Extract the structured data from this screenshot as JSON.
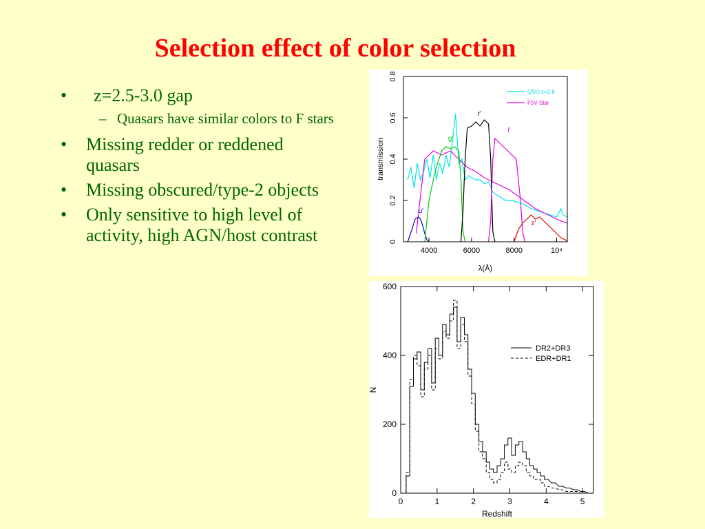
{
  "slide": {
    "title": "Selection effect of color selection",
    "bullets": [
      {
        "text": "z=2.5-3.0 gap",
        "sub": [
          "Quasars have similar colors to F stars"
        ]
      },
      {
        "text": "Missing redder or reddened quasars",
        "sub": []
      },
      {
        "text": "Missing obscured/type-2 objects",
        "sub": []
      },
      {
        "text": "Only sensitive to high level of activity, high AGN/host contrast",
        "sub": []
      }
    ]
  },
  "colors": {
    "title": "#ff0000",
    "text": "#006600",
    "background": "#ffffc8"
  },
  "chart_data": [
    {
      "type": "line",
      "title": "",
      "xlabel": "λ(Å)",
      "ylabel": "transmission",
      "xlim": [
        2800,
        10500
      ],
      "ylim": [
        0,
        0.8
      ],
      "xticks": [
        4000,
        6000,
        8000,
        10000
      ],
      "xtick_labels": [
        "4000",
        "6000",
        "8000",
        "10⁴"
      ],
      "yticks": [
        0,
        0.2,
        0.4,
        0.6,
        0.8
      ],
      "ytick_labels": [
        "0",
        "0.2",
        "0.4",
        "0.6",
        "0.8"
      ],
      "legend_position": "top-right",
      "legend": [
        "QSO z=2.8",
        "F5V Star"
      ],
      "annotations": [
        "u'",
        "g'",
        "r'",
        "i'",
        "z'"
      ],
      "series": [
        {
          "name": "QSO z=2.8",
          "color": "#00e5e5",
          "x": [
            3000,
            3150,
            3300,
            3450,
            3600,
            3750,
            3900,
            4050,
            4200,
            4350,
            4500,
            4650,
            4800,
            4950,
            5100,
            5250,
            5400,
            5550,
            5700,
            5850,
            6000,
            6200,
            6400,
            6600,
            6800,
            7000,
            7300,
            7600,
            7900,
            8200,
            8500,
            8800,
            9100,
            9400,
            9700,
            10000,
            10200,
            10300,
            10500
          ],
          "y": [
            0.3,
            0.36,
            0.26,
            0.38,
            0.3,
            0.34,
            0.4,
            0.31,
            0.42,
            0.3,
            0.38,
            0.33,
            0.42,
            0.36,
            0.48,
            0.62,
            0.38,
            0.4,
            0.3,
            0.32,
            0.31,
            0.3,
            0.3,
            0.28,
            0.29,
            0.24,
            0.22,
            0.2,
            0.2,
            0.19,
            0.18,
            0.16,
            0.15,
            0.14,
            0.13,
            0.12,
            0.16,
            0.13,
            0.12
          ]
        },
        {
          "name": "F5V Star",
          "color": "#e000e0",
          "x": [
            3400,
            3800,
            4200,
            4600,
            5000,
            5400,
            5800,
            6200,
            6600,
            7000,
            7400,
            7800,
            8200,
            8600,
            9000,
            9400,
            9800,
            10200,
            10500
          ],
          "y": [
            0.04,
            0.4,
            0.44,
            0.42,
            0.44,
            0.4,
            0.36,
            0.34,
            0.31,
            0.29,
            0.27,
            0.25,
            0.22,
            0.19,
            0.16,
            0.14,
            0.12,
            0.1,
            0.09
          ]
        },
        {
          "name": "u'",
          "color": "#0000cc",
          "x": [
            3000,
            3200,
            3350,
            3500,
            3600,
            3700,
            3800,
            3900,
            4000
          ],
          "y": [
            0.0,
            0.06,
            0.11,
            0.12,
            0.11,
            0.08,
            0.04,
            0.01,
            0.0
          ]
        },
        {
          "name": "g'",
          "color": "#00cc00",
          "x": [
            3800,
            4000,
            4200,
            4400,
            4600,
            4800,
            5000,
            5200,
            5400,
            5500,
            5600,
            5700
          ],
          "y": [
            0.0,
            0.2,
            0.3,
            0.38,
            0.44,
            0.46,
            0.45,
            0.46,
            0.44,
            0.3,
            0.05,
            0.0
          ]
        },
        {
          "name": "r'",
          "color": "#000000",
          "x": [
            5500,
            5600,
            5700,
            5800,
            6000,
            6200,
            6400,
            6600,
            6800,
            6900,
            7000,
            7100
          ],
          "y": [
            0.0,
            0.15,
            0.4,
            0.55,
            0.56,
            0.58,
            0.56,
            0.59,
            0.57,
            0.4,
            0.05,
            0.0
          ]
        },
        {
          "name": "i'",
          "color": "#e000e0",
          "x": [
            6800,
            6900,
            7000,
            7100,
            7300,
            7500,
            7700,
            7900,
            8100,
            8300,
            8400,
            8500
          ],
          "y": [
            0.0,
            0.1,
            0.4,
            0.5,
            0.48,
            0.46,
            0.44,
            0.42,
            0.4,
            0.2,
            0.05,
            0.0
          ]
        },
        {
          "name": "z'",
          "color": "#dd0000",
          "x": [
            8000,
            8200,
            8400,
            8600,
            8800,
            9000,
            9200,
            9400,
            9600,
            9800,
            10000,
            10200,
            10400,
            10500
          ],
          "y": [
            0.0,
            0.06,
            0.09,
            0.11,
            0.13,
            0.11,
            0.12,
            0.1,
            0.08,
            0.06,
            0.04,
            0.02,
            0.01,
            0.0
          ]
        }
      ]
    },
    {
      "type": "line",
      "title": "",
      "xlabel": "Redshift",
      "ylabel": "N",
      "xlim": [
        0,
        5.3
      ],
      "ylim": [
        0,
        600
      ],
      "xticks": [
        0,
        1,
        2,
        3,
        4,
        5
      ],
      "yticks": [
        0,
        200,
        400,
        600
      ],
      "legend_position": "top-right",
      "legend": [
        "DR2+DR3",
        "EDR+DR1"
      ],
      "series": [
        {
          "name": "DR2+DR3",
          "style": "solid",
          "color": "#000000",
          "x": [
            0.1,
            0.2,
            0.3,
            0.4,
            0.5,
            0.6,
            0.7,
            0.8,
            0.9,
            1.0,
            1.1,
            1.2,
            1.3,
            1.4,
            1.5,
            1.6,
            1.7,
            1.8,
            1.9,
            2.0,
            2.1,
            2.2,
            2.3,
            2.4,
            2.5,
            2.6,
            2.7,
            2.8,
            2.9,
            3.0,
            3.1,
            3.2,
            3.3,
            3.4,
            3.5,
            3.6,
            3.7,
            3.8,
            3.9,
            4.0,
            4.2,
            4.4,
            4.6,
            4.8,
            5.0,
            5.2
          ],
          "y": [
            0,
            50,
            310,
            390,
            410,
            300,
            380,
            420,
            320,
            450,
            400,
            490,
            460,
            520,
            540,
            440,
            510,
            460,
            360,
            290,
            200,
            150,
            120,
            90,
            70,
            60,
            80,
            100,
            140,
            160,
            110,
            140,
            150,
            120,
            100,
            80,
            70,
            60,
            50,
            40,
            30,
            20,
            15,
            10,
            5,
            0
          ]
        },
        {
          "name": "EDR+DR1",
          "style": "dashed",
          "color": "#000000",
          "x": [
            0.1,
            0.2,
            0.3,
            0.4,
            0.5,
            0.6,
            0.7,
            0.8,
            0.9,
            1.0,
            1.1,
            1.2,
            1.3,
            1.4,
            1.5,
            1.6,
            1.7,
            1.8,
            1.9,
            2.0,
            2.1,
            2.2,
            2.3,
            2.4,
            2.5,
            2.6,
            2.7,
            2.8,
            2.9,
            3.0,
            3.1,
            3.2,
            3.3,
            3.4,
            3.5,
            3.6,
            3.7,
            3.8,
            3.9,
            4.0,
            4.2,
            4.4,
            4.6,
            4.8,
            5.0,
            5.2
          ],
          "y": [
            0,
            60,
            330,
            400,
            370,
            280,
            360,
            400,
            300,
            420,
            390,
            470,
            450,
            500,
            560,
            420,
            490,
            440,
            340,
            260,
            180,
            120,
            100,
            60,
            40,
            30,
            40,
            60,
            90,
            70,
            60,
            80,
            90,
            80,
            60,
            50,
            40,
            40,
            30,
            20,
            15,
            10,
            5,
            5,
            0,
            0
          ]
        }
      ]
    }
  ]
}
